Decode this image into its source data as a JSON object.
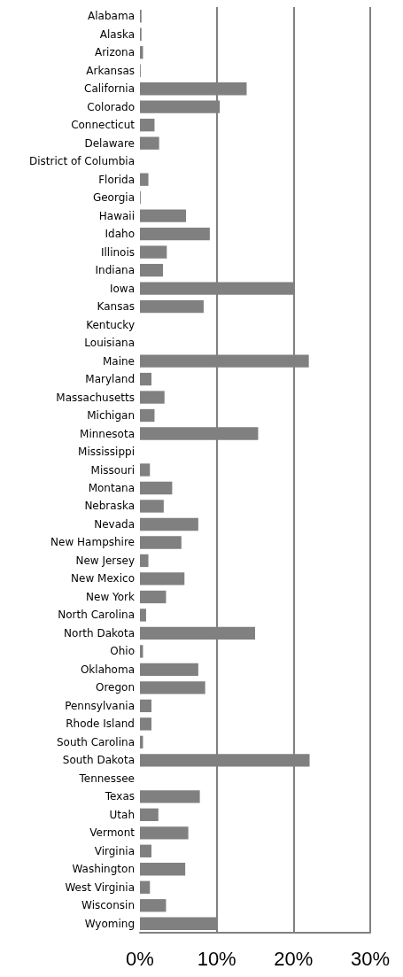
{
  "chart_data": {
    "type": "bar",
    "orientation": "horizontal",
    "categories": [
      "Alabama",
      "Alaska",
      "Arizona",
      "Arkansas",
      "California",
      "Colorado",
      "Connecticut",
      "Delaware",
      "District of Columbia",
      "Florida",
      "Georgia",
      "Hawaii",
      "Idaho",
      "Illinois",
      "Indiana",
      "Iowa",
      "Kansas",
      "Kentucky",
      "Louisiana",
      "Maine",
      "Maryland",
      "Massachusetts",
      "Michigan",
      "Minnesota",
      "Mississippi",
      "Missouri",
      "Montana",
      "Nebraska",
      "Nevada",
      "New Hampshire",
      "New Jersey",
      "New Mexico",
      "New York",
      "North Carolina",
      "North Dakota",
      "Ohio",
      "Oklahoma",
      "Oregon",
      "Pennsylvania",
      "Rhode Island",
      "South Carolina",
      "South Dakota",
      "Tennessee",
      "Texas",
      "Utah",
      "Vermont",
      "Virginia",
      "Washington",
      "West Virginia",
      "Wisconsin",
      "Wyoming"
    ],
    "values": [
      0.2,
      0.2,
      0.4,
      0.1,
      13.9,
      10.4,
      1.9,
      2.5,
      0,
      1.1,
      0.1,
      6.0,
      9.1,
      3.5,
      3.0,
      20.0,
      8.3,
      0,
      0,
      22.0,
      1.5,
      3.2,
      1.9,
      15.4,
      0,
      1.3,
      4.2,
      3.1,
      7.6,
      5.4,
      1.1,
      5.8,
      3.4,
      0.8,
      15.0,
      0.4,
      7.6,
      8.5,
      1.5,
      1.5,
      0.4,
      22.1,
      0,
      7.8,
      2.4,
      6.3,
      1.5,
      5.9,
      1.3,
      3.4,
      10.0
    ],
    "color": "#808080",
    "xlim": [
      0,
      30
    ],
    "xticks": [
      {
        "value": 0,
        "label": "0%"
      },
      {
        "value": 10,
        "label": "10%"
      },
      {
        "value": 20,
        "label": "20%"
      },
      {
        "value": 30,
        "label": "30%"
      }
    ],
    "grid": "x"
  }
}
